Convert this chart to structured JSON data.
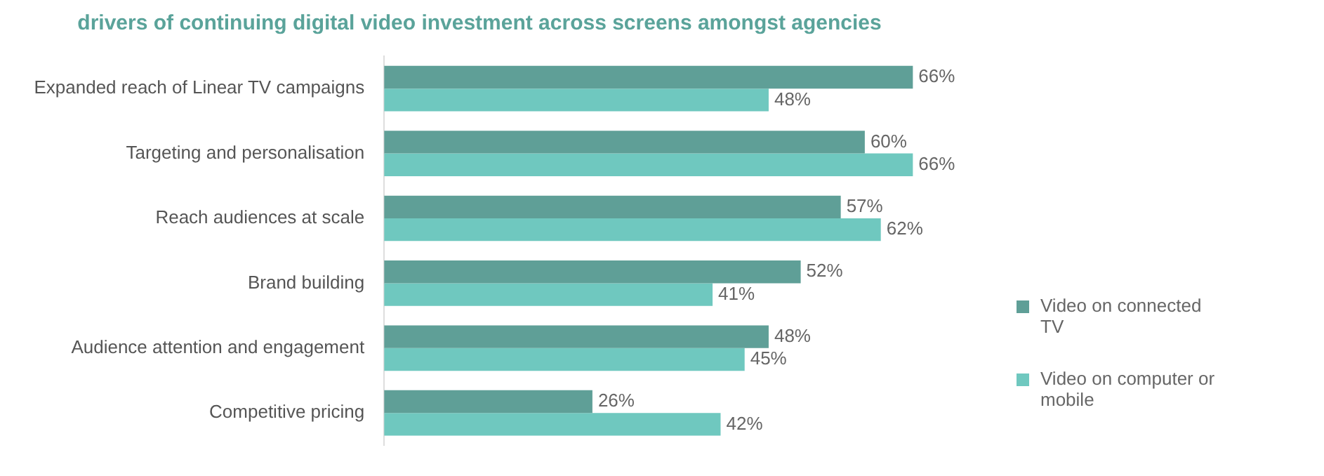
{
  "chart_data": {
    "type": "bar",
    "orientation": "horizontal",
    "title": "drivers of continuing digital video investment across screens amongst agencies",
    "categories": [
      "Expanded reach of Linear TV campaigns",
      "Targeting and personalisation",
      "Reach audiences at scale",
      "Brand building",
      "Audience attention and engagement",
      "Competitive pricing"
    ],
    "series": [
      {
        "name": "Video on connected TV",
        "color": "#5f9f97",
        "values": [
          66,
          60,
          57,
          52,
          48,
          26
        ],
        "value_labels": [
          "66%",
          "60%",
          "57%",
          "52%",
          "48%",
          "26%"
        ]
      },
      {
        "name": "Video on computer or mobile",
        "color": "#6fc8bf",
        "values": [
          48,
          66,
          62,
          41,
          45,
          42
        ],
        "value_labels": [
          "48%",
          "66%",
          "62%",
          "41%",
          "45%",
          "42%"
        ]
      }
    ],
    "legend": "right",
    "grid": false
  }
}
